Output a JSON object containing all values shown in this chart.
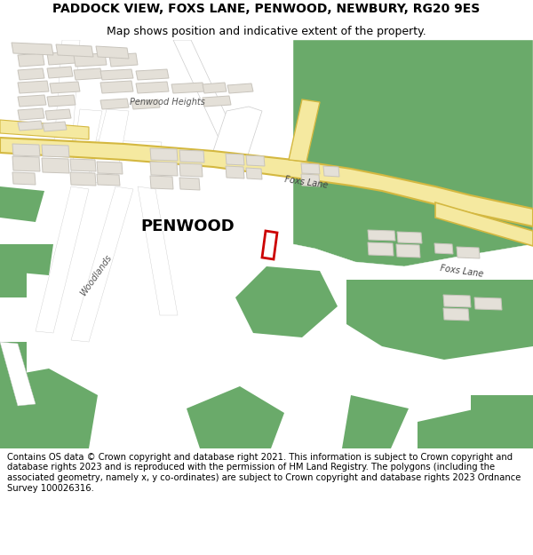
{
  "title_line1": "PADDOCK VIEW, FOXS LANE, PENWOOD, NEWBURY, RG20 9ES",
  "title_line2": "Map shows position and indicative extent of the property.",
  "footer": "Contains OS data © Crown copyright and database right 2021. This information is subject to Crown copyright and database rights 2023 and is reproduced with the permission of HM Land Registry. The polygons (including the associated geometry, namely x, y co-ordinates) are subject to Crown copyright and database rights 2023 Ordnance Survey 100026316.",
  "map_bg": "#f0ede7",
  "green_color": "#6aaa6a",
  "road_fill": "#f5e9a0",
  "road_stroke": "#d4b840",
  "building_fill": "#e4e0d8",
  "building_stroke": "#c8c4bc",
  "property_color": "#cc0000",
  "white_road": "#ffffff",
  "label_penwood": "PENWOOD",
  "label_foxslane1": "Foxs Lane",
  "label_foxslane2": "Foxs Lane",
  "label_woodlands": "Woodlands",
  "label_penwood_heights": "Penwood Heights",
  "title_fontsize": 10,
  "subtitle_fontsize": 9,
  "footer_fontsize": 7.2
}
